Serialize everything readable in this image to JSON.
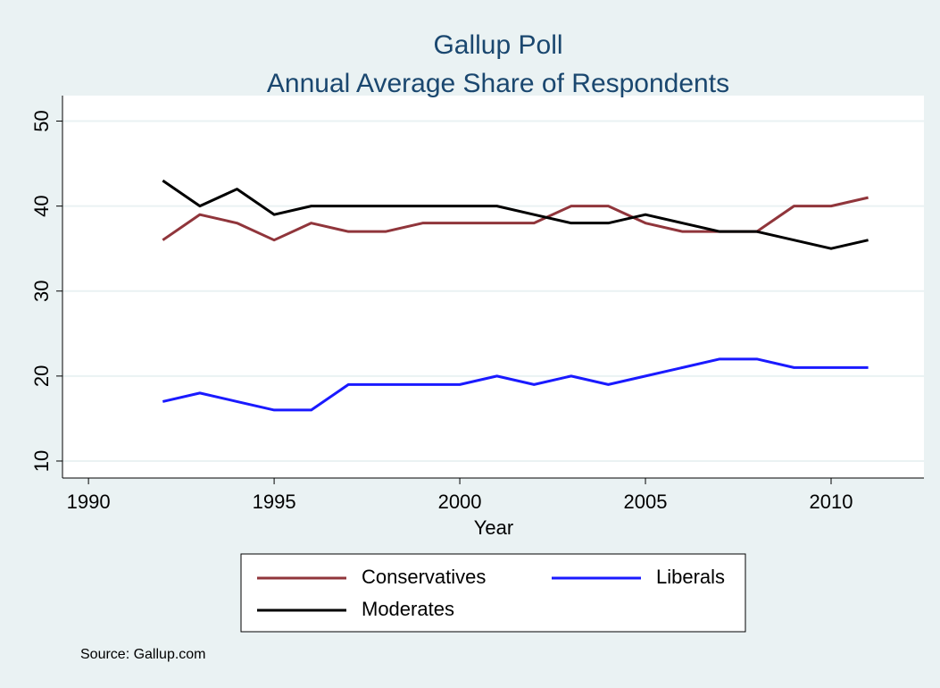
{
  "chart_data": {
    "type": "line",
    "title": "Gallup Poll",
    "subtitle": "Annual Average Share of Respondents",
    "x_label": "Year",
    "note": "Source: Gallup.com",
    "x": [
      1992,
      1993,
      1994,
      1995,
      1996,
      1997,
      1998,
      1999,
      2000,
      2001,
      2002,
      2003,
      2004,
      2005,
      2006,
      2007,
      2008,
      2009,
      2010,
      2011
    ],
    "series": [
      {
        "name": "Conservatives",
        "color": "#90353b",
        "values": [
          36,
          39,
          38,
          36,
          38,
          37,
          37,
          38,
          38,
          38,
          38,
          40,
          40,
          38,
          37,
          37,
          37,
          40,
          40,
          41
        ]
      },
      {
        "name": "Liberals",
        "color": "#1a1aff",
        "values": [
          17,
          18,
          17,
          16,
          16,
          19,
          19,
          19,
          19,
          20,
          19,
          20,
          19,
          20,
          21,
          22,
          22,
          21,
          21,
          21
        ]
      },
      {
        "name": "Moderates",
        "color": "#000000",
        "values": [
          43,
          40,
          42,
          39,
          40,
          40,
          40,
          40,
          40,
          40,
          39,
          38,
          38,
          39,
          38,
          37,
          37,
          36,
          35,
          36
        ]
      }
    ],
    "xlim": [
      1989.3,
      2012.5
    ],
    "xticks": [
      1990,
      1995,
      2000,
      2005,
      2010
    ],
    "ylim": [
      8,
      53
    ],
    "yticks": [
      10,
      20,
      30,
      40,
      50
    ],
    "grid": true,
    "legend_position": "bottom"
  }
}
